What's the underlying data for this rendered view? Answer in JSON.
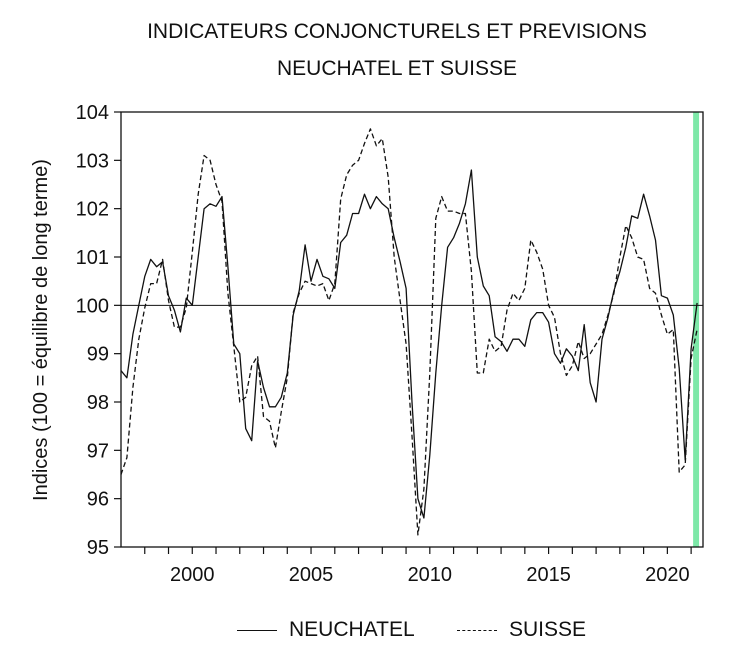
{
  "chart_data": {
    "type": "line",
    "title": "INDICATEURS CONJONCTURELS ET PREVISIONS",
    "subtitle": "NEUCHATEL ET SUISSE",
    "xlabel": "",
    "ylabel": "Indices (100 = équilibre de long terme)",
    "xlim": [
      1997.0,
      2021.5
    ],
    "ylim": [
      95,
      104
    ],
    "x_ticks": [
      2000,
      2005,
      2010,
      2015,
      2020
    ],
    "x_tick_labels": [
      "2000",
      "2005",
      "2010",
      "2015",
      "2020"
    ],
    "y_ticks": [
      95,
      96,
      97,
      98,
      99,
      100,
      101,
      102,
      103,
      104
    ],
    "y_tick_labels": [
      "95",
      "96",
      "97",
      "98",
      "99",
      "100",
      "101",
      "102",
      "103",
      "104"
    ],
    "reference_line": 100,
    "forecast_band": {
      "from": 2021.0,
      "to": 2021.25,
      "color": "#7de8a8"
    },
    "legend_position": "bottom-center",
    "series": [
      {
        "name": "NEUCHATEL",
        "style": "solid",
        "color": "#111111",
        "points": [
          [
            1997.0,
            98.65
          ],
          [
            1997.25,
            98.5
          ],
          [
            1997.5,
            99.4
          ],
          [
            1997.75,
            100.0
          ],
          [
            1998.0,
            100.6
          ],
          [
            1998.25,
            100.95
          ],
          [
            1998.5,
            100.8
          ],
          [
            1998.75,
            100.9
          ],
          [
            1999.0,
            100.2
          ],
          [
            1999.25,
            99.9
          ],
          [
            1999.5,
            99.45
          ],
          [
            1999.75,
            100.15
          ],
          [
            2000.0,
            100.0
          ],
          [
            2000.25,
            101.0
          ],
          [
            2000.5,
            102.0
          ],
          [
            2000.75,
            102.1
          ],
          [
            2001.0,
            102.05
          ],
          [
            2001.25,
            102.25
          ],
          [
            2001.5,
            100.8
          ],
          [
            2001.75,
            99.2
          ],
          [
            2002.0,
            99.0
          ],
          [
            2002.25,
            97.45
          ],
          [
            2002.5,
            97.2
          ],
          [
            2002.75,
            98.85
          ],
          [
            2003.0,
            98.3
          ],
          [
            2003.25,
            97.9
          ],
          [
            2003.5,
            97.9
          ],
          [
            2003.75,
            98.1
          ],
          [
            2004.0,
            98.6
          ],
          [
            2004.25,
            99.8
          ],
          [
            2004.5,
            100.3
          ],
          [
            2004.75,
            101.25
          ],
          [
            2005.0,
            100.5
          ],
          [
            2005.25,
            100.95
          ],
          [
            2005.5,
            100.6
          ],
          [
            2005.75,
            100.55
          ],
          [
            2006.0,
            100.35
          ],
          [
            2006.25,
            101.3
          ],
          [
            2006.5,
            101.45
          ],
          [
            2006.75,
            101.9
          ],
          [
            2007.0,
            101.9
          ],
          [
            2007.25,
            102.3
          ],
          [
            2007.5,
            102.0
          ],
          [
            2007.75,
            102.25
          ],
          [
            2008.0,
            102.1
          ],
          [
            2008.25,
            102.0
          ],
          [
            2008.5,
            101.4
          ],
          [
            2008.75,
            100.9
          ],
          [
            2009.0,
            100.35
          ],
          [
            2009.25,
            98.0
          ],
          [
            2009.5,
            96.0
          ],
          [
            2009.75,
            95.6
          ],
          [
            2010.0,
            96.9
          ],
          [
            2010.25,
            98.6
          ],
          [
            2010.5,
            100.0
          ],
          [
            2010.75,
            101.2
          ],
          [
            2011.0,
            101.4
          ],
          [
            2011.25,
            101.7
          ],
          [
            2011.5,
            102.1
          ],
          [
            2011.75,
            102.8
          ],
          [
            2012.0,
            101.0
          ],
          [
            2012.25,
            100.4
          ],
          [
            2012.5,
            100.2
          ],
          [
            2012.75,
            99.35
          ],
          [
            2013.0,
            99.25
          ],
          [
            2013.25,
            99.05
          ],
          [
            2013.5,
            99.3
          ],
          [
            2013.75,
            99.3
          ],
          [
            2014.0,
            99.15
          ],
          [
            2014.25,
            99.7
          ],
          [
            2014.5,
            99.85
          ],
          [
            2014.75,
            99.85
          ],
          [
            2015.0,
            99.65
          ],
          [
            2015.25,
            99.0
          ],
          [
            2015.5,
            98.8
          ],
          [
            2015.75,
            99.1
          ],
          [
            2016.0,
            98.95
          ],
          [
            2016.25,
            98.65
          ],
          [
            2016.5,
            99.6
          ],
          [
            2016.75,
            98.4
          ],
          [
            2017.0,
            98.0
          ],
          [
            2017.25,
            99.3
          ],
          [
            2017.5,
            99.75
          ],
          [
            2017.75,
            100.3
          ],
          [
            2018.0,
            100.7
          ],
          [
            2018.25,
            101.2
          ],
          [
            2018.5,
            101.85
          ],
          [
            2018.75,
            101.8
          ],
          [
            2019.0,
            102.3
          ],
          [
            2019.25,
            101.85
          ],
          [
            2019.5,
            101.35
          ],
          [
            2019.75,
            100.2
          ],
          [
            2020.0,
            100.15
          ],
          [
            2020.25,
            99.8
          ],
          [
            2020.5,
            98.7
          ],
          [
            2020.75,
            96.8
          ],
          [
            2021.0,
            99.1
          ],
          [
            2021.25,
            100.05
          ]
        ]
      },
      {
        "name": "SUISSE",
        "style": "dashed",
        "color": "#111111",
        "points": [
          [
            1997.0,
            96.5
          ],
          [
            1997.25,
            96.85
          ],
          [
            1997.5,
            98.3
          ],
          [
            1997.75,
            99.3
          ],
          [
            1998.0,
            99.95
          ],
          [
            1998.25,
            100.45
          ],
          [
            1998.5,
            100.45
          ],
          [
            1998.75,
            100.95
          ],
          [
            1999.0,
            100.1
          ],
          [
            1999.25,
            99.55
          ],
          [
            1999.5,
            99.55
          ],
          [
            1999.75,
            99.95
          ],
          [
            2000.0,
            101.1
          ],
          [
            2000.25,
            102.3
          ],
          [
            2000.5,
            103.1
          ],
          [
            2000.75,
            103.0
          ],
          [
            2001.0,
            102.5
          ],
          [
            2001.25,
            102.15
          ],
          [
            2001.5,
            100.25
          ],
          [
            2001.75,
            99.15
          ],
          [
            2002.0,
            98.0
          ],
          [
            2002.25,
            98.1
          ],
          [
            2002.5,
            98.75
          ],
          [
            2002.75,
            98.95
          ],
          [
            2003.0,
            97.7
          ],
          [
            2003.25,
            97.6
          ],
          [
            2003.5,
            97.05
          ],
          [
            2003.75,
            97.8
          ],
          [
            2004.0,
            98.5
          ],
          [
            2004.25,
            99.85
          ],
          [
            2004.5,
            100.25
          ],
          [
            2004.75,
            100.5
          ],
          [
            2005.0,
            100.45
          ],
          [
            2005.25,
            100.4
          ],
          [
            2005.5,
            100.45
          ],
          [
            2005.75,
            100.1
          ],
          [
            2006.0,
            100.45
          ],
          [
            2006.25,
            102.2
          ],
          [
            2006.5,
            102.7
          ],
          [
            2006.75,
            102.9
          ],
          [
            2007.0,
            103.0
          ],
          [
            2007.25,
            103.35
          ],
          [
            2007.5,
            103.65
          ],
          [
            2007.75,
            103.3
          ],
          [
            2008.0,
            103.45
          ],
          [
            2008.25,
            102.65
          ],
          [
            2008.5,
            101.0
          ],
          [
            2008.75,
            100.1
          ],
          [
            2009.0,
            99.2
          ],
          [
            2009.25,
            97.3
          ],
          [
            2009.5,
            95.25
          ],
          [
            2009.75,
            96.2
          ],
          [
            2010.0,
            98.6
          ],
          [
            2010.25,
            101.8
          ],
          [
            2010.5,
            102.25
          ],
          [
            2010.75,
            101.95
          ],
          [
            2011.0,
            101.95
          ],
          [
            2011.25,
            101.9
          ],
          [
            2011.5,
            101.9
          ],
          [
            2011.75,
            100.7
          ],
          [
            2012.0,
            98.6
          ],
          [
            2012.25,
            98.6
          ],
          [
            2012.5,
            99.3
          ],
          [
            2012.75,
            99.05
          ],
          [
            2013.0,
            99.15
          ],
          [
            2013.25,
            99.9
          ],
          [
            2013.5,
            100.25
          ],
          [
            2013.75,
            100.1
          ],
          [
            2014.0,
            100.35
          ],
          [
            2014.25,
            101.35
          ],
          [
            2014.5,
            101.1
          ],
          [
            2014.75,
            100.75
          ],
          [
            2015.0,
            100.0
          ],
          [
            2015.25,
            99.75
          ],
          [
            2015.5,
            99.0
          ],
          [
            2015.75,
            98.55
          ],
          [
            2016.0,
            98.75
          ],
          [
            2016.25,
            99.25
          ],
          [
            2016.5,
            98.9
          ],
          [
            2016.75,
            99.0
          ],
          [
            2017.0,
            99.2
          ],
          [
            2017.25,
            99.4
          ],
          [
            2017.5,
            99.8
          ],
          [
            2017.75,
            100.25
          ],
          [
            2018.0,
            101.0
          ],
          [
            2018.25,
            101.65
          ],
          [
            2018.5,
            101.4
          ],
          [
            2018.75,
            101.0
          ],
          [
            2019.0,
            100.95
          ],
          [
            2019.25,
            100.35
          ],
          [
            2019.5,
            100.25
          ],
          [
            2019.75,
            99.8
          ],
          [
            2020.0,
            99.4
          ],
          [
            2020.25,
            99.5
          ],
          [
            2020.5,
            96.55
          ],
          [
            2020.75,
            96.7
          ],
          [
            2021.0,
            98.9
          ],
          [
            2021.25,
            99.5
          ]
        ]
      }
    ]
  }
}
